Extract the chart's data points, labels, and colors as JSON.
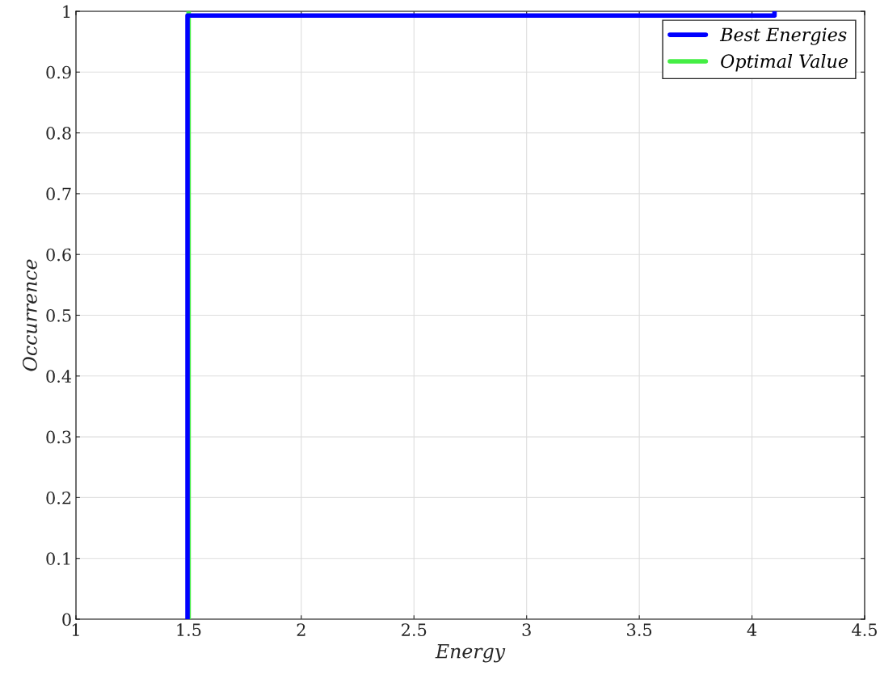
{
  "chart_data": {
    "type": "line",
    "xlabel": "Energy",
    "ylabel": "Occurrence",
    "series": [
      {
        "name": "Best Energies",
        "color": "#0000ff",
        "x": [
          1.495,
          1.495,
          4.1,
          4.1
        ],
        "values": [
          0,
          0.993,
          0.993,
          1
        ]
      },
      {
        "name": "Optimal Value",
        "color": "#44ee44",
        "x": [
          1.5,
          1.5
        ],
        "values": [
          0,
          1
        ]
      }
    ],
    "xlim": [
      1,
      4.5
    ],
    "xticks": [
      1,
      1.5,
      2,
      2.5,
      3,
      3.5,
      4,
      4.5
    ],
    "ylim": [
      0,
      1
    ],
    "yticks": [
      0,
      0.1,
      0.2,
      0.3,
      0.4,
      0.5,
      0.6,
      0.7,
      0.8,
      0.9,
      1
    ],
    "grid": true,
    "legend": "top right",
    "line_style": "solid",
    "marker": "none"
  }
}
